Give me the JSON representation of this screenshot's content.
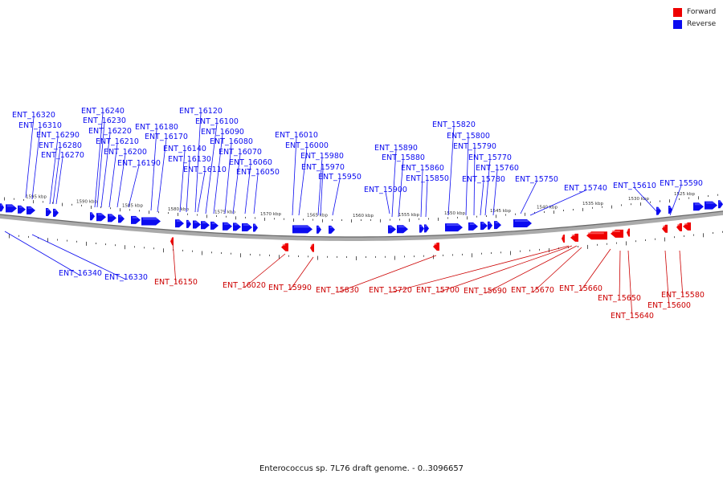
{
  "legend": [
    {
      "label": "Forward",
      "color": "#ee0000"
    },
    {
      "label": "Reverse",
      "color": "#0b0bf0"
    }
  ],
  "caption": "Enterococcus sp. 7L76 draft genome. - 0..3096657",
  "ticks": [
    "1595 kbp",
    "1590 kbp",
    "1585 kbp",
    "1580 kbp",
    "1575 kbp",
    "1570 kbp",
    "1565 kbp",
    "1560 kbp",
    "1555 kbp",
    "1550 kbp",
    "1545 kbp",
    "1540 kbp",
    "1535 kbp",
    "1530 kbp",
    "1525 kbp"
  ],
  "reverse_genes": [
    "ENT_16320",
    "ENT_16310",
    "ENT_16290",
    "ENT_16280",
    "ENT_16270",
    "ENT_16240",
    "ENT_16230",
    "ENT_16220",
    "ENT_16210",
    "ENT_16200",
    "ENT_16190",
    "ENT_16180",
    "ENT_16170",
    "ENT_16140",
    "ENT_16130",
    "ENT_16110",
    "ENT_16120",
    "ENT_16100",
    "ENT_16090",
    "ENT_16080",
    "ENT_16070",
    "ENT_16060",
    "ENT_16050",
    "ENT_16010",
    "ENT_16000",
    "ENT_15980",
    "ENT_15970",
    "ENT_15950",
    "ENT_15890",
    "ENT_15880",
    "ENT_15860",
    "ENT_15850",
    "ENT_15900",
    "ENT_15820",
    "ENT_15800",
    "ENT_15790",
    "ENT_15770",
    "ENT_15760",
    "ENT_15780",
    "ENT_15750",
    "ENT_15740",
    "ENT_15610",
    "ENT_15590",
    "ENT_16340",
    "ENT_16330"
  ],
  "forward_genes": [
    "ENT_16150",
    "ENT_16020",
    "ENT_15990",
    "ENT_15830",
    "ENT_15720",
    "ENT_15700",
    "ENT_15690",
    "ENT_15670",
    "ENT_15660",
    "ENT_15650",
    "ENT_15640",
    "ENT_15600",
    "ENT_15580"
  ]
}
